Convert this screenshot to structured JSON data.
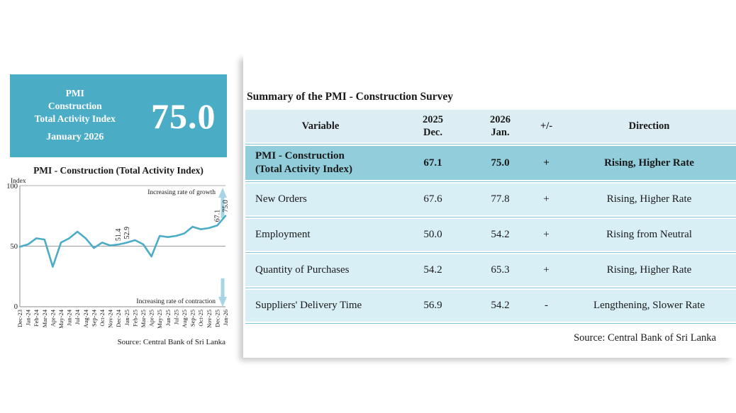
{
  "banner": {
    "title_lines": [
      "PMI",
      "Construction",
      "Total Activity Index"
    ],
    "period": "January 2026",
    "value": "75.0"
  },
  "chart": {
    "title": "PMI - Construction (Total Activity Index)",
    "axis_label": "Index",
    "growth_label": "Increasing rate of growth",
    "contraction_label": "Increasing rate of contraction",
    "source": "Source: Central Bank of Sri Lanka"
  },
  "chart_data": {
    "type": "line",
    "title": "PMI - Construction (Total Activity Index)",
    "ylabel": "Index",
    "ylim": [
      0,
      100
    ],
    "yticks": [
      100,
      50,
      0
    ],
    "ytick_labels": [
      "100",
      "50",
      "0"
    ],
    "grid": "horizontal",
    "line_color": "#4BACC6",
    "x": [
      "Dec-23",
      "Jan-24",
      "Feb-24",
      "Mar-24",
      "Apr-24",
      "May-24",
      "Jun-24",
      "Jul-24",
      "Aug-24",
      "Sep-24",
      "Oct-24",
      "Nov-24",
      "Dec-24",
      "Jan-25",
      "Feb-25",
      "Mar-25",
      "Apr-25",
      "May-25",
      "Jun-25",
      "Jul-25",
      "Aug-25",
      "Sep-25",
      "Oct-25",
      "Nov-25",
      "Dec-25",
      "Jan-26"
    ],
    "values": [
      49.5,
      51.5,
      56.5,
      55.5,
      33.0,
      53.0,
      56.5,
      62.0,
      56.5,
      48.5,
      53.0,
      50.5,
      51.4,
      52.9,
      55.0,
      51.5,
      41.5,
      58.5,
      57.5,
      58.5,
      60.5,
      66.0,
      64.0,
      65.0,
      67.1,
      75.0
    ],
    "point_labels": [
      {
        "x": "Dec-24",
        "label": "51.4"
      },
      {
        "x": "Jan-25",
        "label": "52.9"
      },
      {
        "x": "Dec-25",
        "label": "67.1"
      },
      {
        "x": "Jan-26",
        "label": "75.0"
      }
    ],
    "annotations": [
      "Increasing rate of growth",
      "Increasing rate of contraction"
    ]
  },
  "table": {
    "title": "Summary of the PMI - Construction Survey",
    "headers": [
      "Variable",
      "2025\nDec.",
      "2026\nJan.",
      "+/-",
      "Direction"
    ],
    "rows": [
      {
        "variable": "PMI - Construction\n(Total Activity Index)",
        "dec": "67.1",
        "jan": "75.0",
        "sign": "+",
        "direction": "Rising, Higher Rate"
      },
      {
        "variable": "New Orders",
        "dec": "67.6",
        "jan": "77.8",
        "sign": "+",
        "direction": "Rising, Higher Rate"
      },
      {
        "variable": "Employment",
        "dec": "50.0",
        "jan": "54.2",
        "sign": "+",
        "direction": "Rising from Neutral"
      },
      {
        "variable": "Quantity of Purchases",
        "dec": "54.2",
        "jan": "65.3",
        "sign": "+",
        "direction": "Rising, Higher Rate"
      },
      {
        "variable": "Suppliers' Delivery Time",
        "dec": "56.9",
        "jan": "54.2",
        "sign": "-",
        "direction": "Lengthening, Slower Rate"
      }
    ],
    "source": "Source: Central Bank of Sri Lanka"
  },
  "colors": {
    "accent": "#4BACC6",
    "header_row": "#DCEDF4",
    "highlight_row": "#92CDDC",
    "data_row": "#D9EFF6",
    "separator_line": "#7FC5D8",
    "arrow": "#A7D5E5",
    "gridline": "#A6A6A6"
  }
}
